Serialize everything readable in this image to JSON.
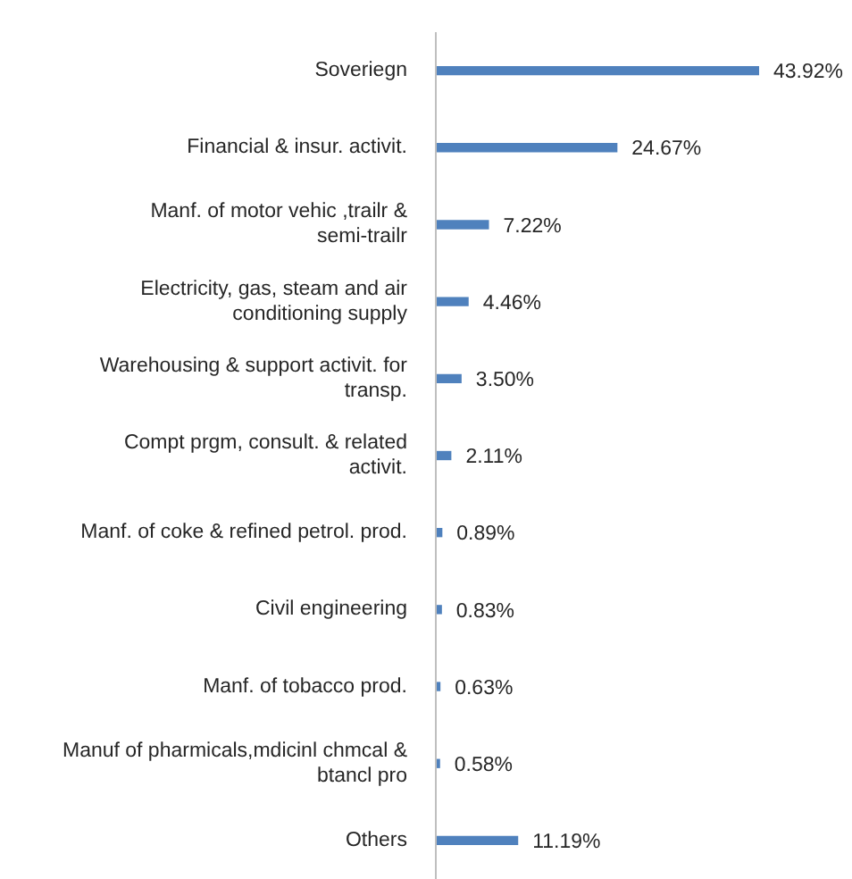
{
  "chart_data": {
    "type": "bar",
    "orientation": "horizontal",
    "categories": [
      "Soveriegn",
      "Financial & insur. activit.",
      "Manf. of motor vehic ,trailr & semi-trailr",
      "Electricity, gas, steam and air conditioning supply",
      "Warehousing & support activit. for transp.",
      "Compt prgm, consult. & related activit.",
      "Manf. of coke & refined petrol. prod.",
      "Civil engineering",
      "Manf. of tobacco prod.",
      "Manuf of pharmicals,mdicinl chmcal & btancl pro",
      "Others"
    ],
    "values": [
      43.92,
      24.67,
      7.22,
      4.46,
      3.5,
      2.11,
      0.89,
      0.83,
      0.63,
      0.58,
      11.19
    ],
    "value_labels": [
      "43.92%",
      "24.67%",
      "7.22%",
      "4.46%",
      "3.50%",
      "2.11%",
      "0.89%",
      "0.83%",
      "0.63%",
      "0.58%",
      "11.19%"
    ],
    "color": "#4f81bd",
    "grid": false,
    "legend": false
  }
}
